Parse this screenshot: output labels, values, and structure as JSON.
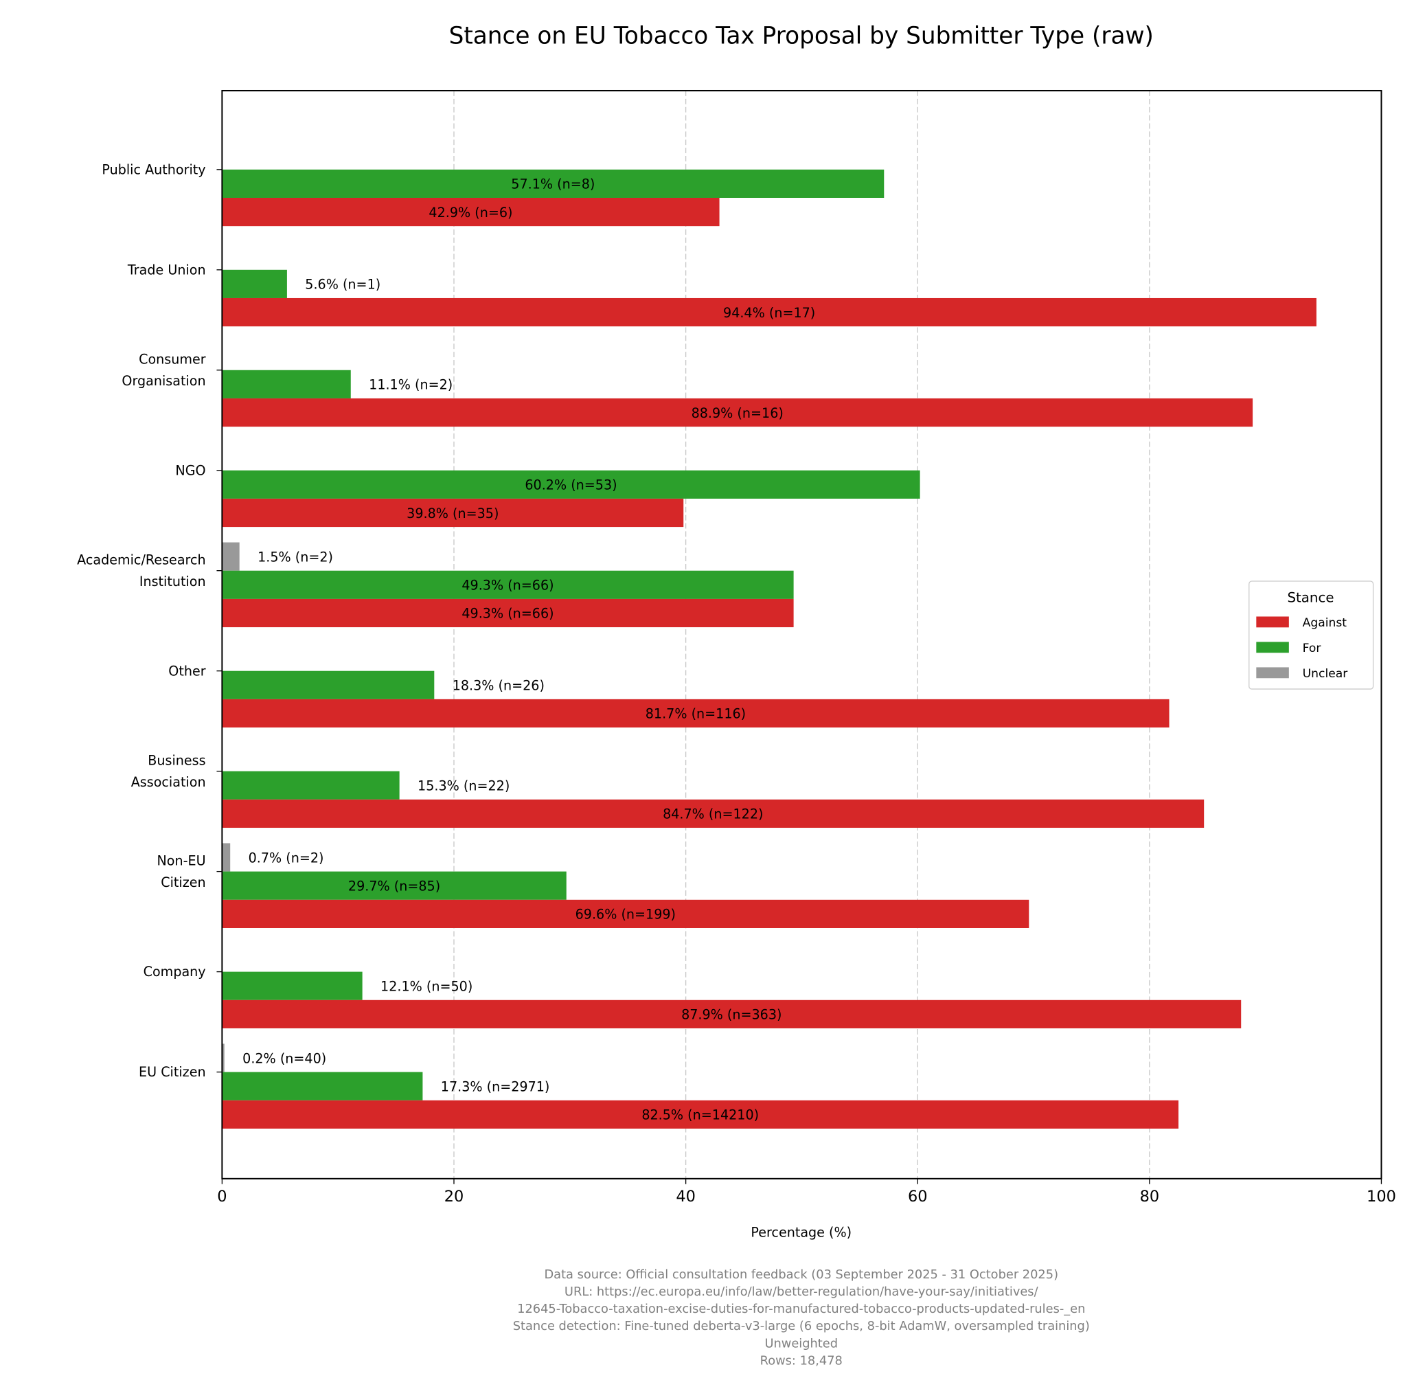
{
  "chart_data": {
    "type": "bar",
    "orientation": "horizontal",
    "title": "Stance on EU Tobacco Tax Proposal by Submitter Type (raw)",
    "xlabel": "Percentage (%)",
    "ylabel": "",
    "xlim": [
      0,
      100
    ],
    "xticks": [
      "0",
      "20",
      "40",
      "60",
      "80",
      "100"
    ],
    "grid": "x dashed",
    "legend": {
      "title": "Stance",
      "placement": "center-right",
      "entries": [
        "Against",
        "For",
        "Unclear"
      ]
    },
    "colors": {
      "Against": "#d62728",
      "For": "#2ca02c",
      "Unclear": "#999999"
    },
    "categories": [
      [
        "Public Authority"
      ],
      [
        "Trade Union"
      ],
      [
        "Consumer",
        "Organisation"
      ],
      [
        "NGO"
      ],
      [
        "Academic/Research",
        "Institution"
      ],
      [
        "Other"
      ],
      [
        "Business",
        "Association"
      ],
      [
        "Non-EU",
        "Citizen"
      ],
      [
        "Company"
      ],
      [
        "EU Citizen"
      ]
    ],
    "series": [
      {
        "name": "Unclear",
        "values": [
          null,
          null,
          null,
          null,
          1.5,
          null,
          null,
          0.7,
          null,
          0.2
        ],
        "labels": [
          null,
          null,
          null,
          null,
          "1.5% (n=2)",
          null,
          null,
          "0.7% (n=2)",
          null,
          "0.2% (n=40)"
        ]
      },
      {
        "name": "For",
        "values": [
          57.1,
          5.6,
          11.1,
          60.2,
          49.3,
          18.3,
          15.3,
          29.7,
          12.1,
          17.3
        ],
        "labels": [
          "57.1% (n=8)",
          "5.6% (n=1)",
          "11.1% (n=2)",
          "60.2% (n=53)",
          "49.3% (n=66)",
          "18.3% (n=26)",
          "15.3% (n=22)",
          "29.7% (n=85)",
          "12.1% (n=50)",
          "17.3% (n=2971)"
        ]
      },
      {
        "name": "Against",
        "values": [
          42.9,
          94.4,
          88.9,
          39.8,
          49.3,
          81.7,
          84.7,
          69.6,
          87.9,
          82.5
        ],
        "labels": [
          "42.9% (n=6)",
          "94.4% (n=17)",
          "88.9% (n=16)",
          "39.8% (n=35)",
          "49.3% (n=66)",
          "81.7% (n=116)",
          "84.7% (n=122)",
          "69.6% (n=199)",
          "87.9% (n=363)",
          "82.5% (n=14210)"
        ]
      }
    ],
    "footer": [
      "Data source: Official consultation feedback (03 September 2025 - 31 October 2025)",
      "URL: https://ec.europa.eu/info/law/better-regulation/have-your-say/initiatives/",
      "12645-Tobacco-taxation-excise-duties-for-manufactured-tobacco-products-updated-rules-_en",
      "Stance detection: Fine-tuned deberta-v3-large (6 epochs, 8-bit AdamW, oversampled training)",
      "Unweighted",
      "Rows: 18,478"
    ]
  }
}
